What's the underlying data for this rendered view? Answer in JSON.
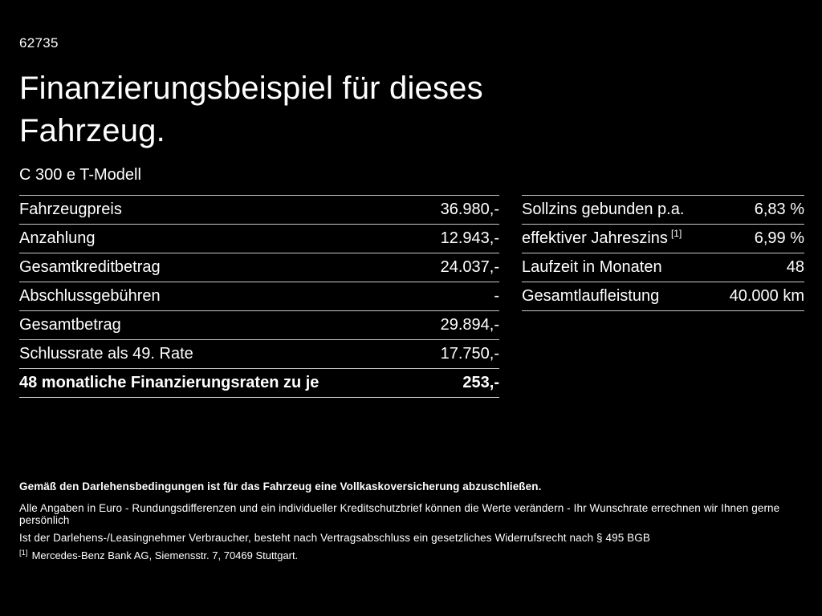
{
  "page": {
    "vehicle_id": "62735",
    "title": "Finanzierungsbeispiel für dieses Fahrzeug.",
    "model": "C 300 e T-Modell"
  },
  "financing": {
    "rows": [
      {
        "label": "Fahrzeugpreis",
        "value": "36.980,-"
      },
      {
        "label": "Anzahlung",
        "value": "12.943,-"
      },
      {
        "label": "Gesamtkreditbetrag",
        "value": "24.037,-"
      },
      {
        "label": "Abschlussgebühren",
        "value": "-"
      },
      {
        "label": "Gesamtbetrag",
        "value": "29.894,-"
      },
      {
        "label": "Schlussrate als 49. Rate",
        "value": "17.750,-"
      },
      {
        "label": "48 monatliche Finanzierungsraten zu je",
        "value": "253,-"
      }
    ]
  },
  "conditions": {
    "rows": [
      {
        "label": "Sollzins gebunden p.a.",
        "value": "6,83 %"
      },
      {
        "label": "effektiver Jahreszins",
        "sup": "[1]",
        "value": "6,99 %"
      },
      {
        "label": "Laufzeit in Monaten",
        "value": "48"
      },
      {
        "label": "Gesamtlaufleistung",
        "value": "40.000 km"
      }
    ]
  },
  "footer": {
    "insurance_note": "Gemäß den Darlehensbedingungen ist für das Fahrzeug eine Vollkaskoversicherung abzuschließen.",
    "note_line2": "Alle Angaben in Euro - Rundungsdifferenzen und ein individueller Kreditschutzbrief können die Werte verändern - Ihr Wunschrate errechnen wir Ihnen gerne persönlich",
    "note_line3": "Ist der Darlehens-/Leasingnehmer Verbraucher, besteht nach Vertragsabschluss ein gesetzliches Widerrufsrecht nach § 495 BGB",
    "footnote_marker": "[1]",
    "footnote": "Mercedes-Benz Bank AG, Siemensstr. 7, 70469 Stuttgart."
  },
  "colors": {
    "background": "#000000",
    "text": "#ffffff",
    "divider": "#c9c9c9"
  }
}
